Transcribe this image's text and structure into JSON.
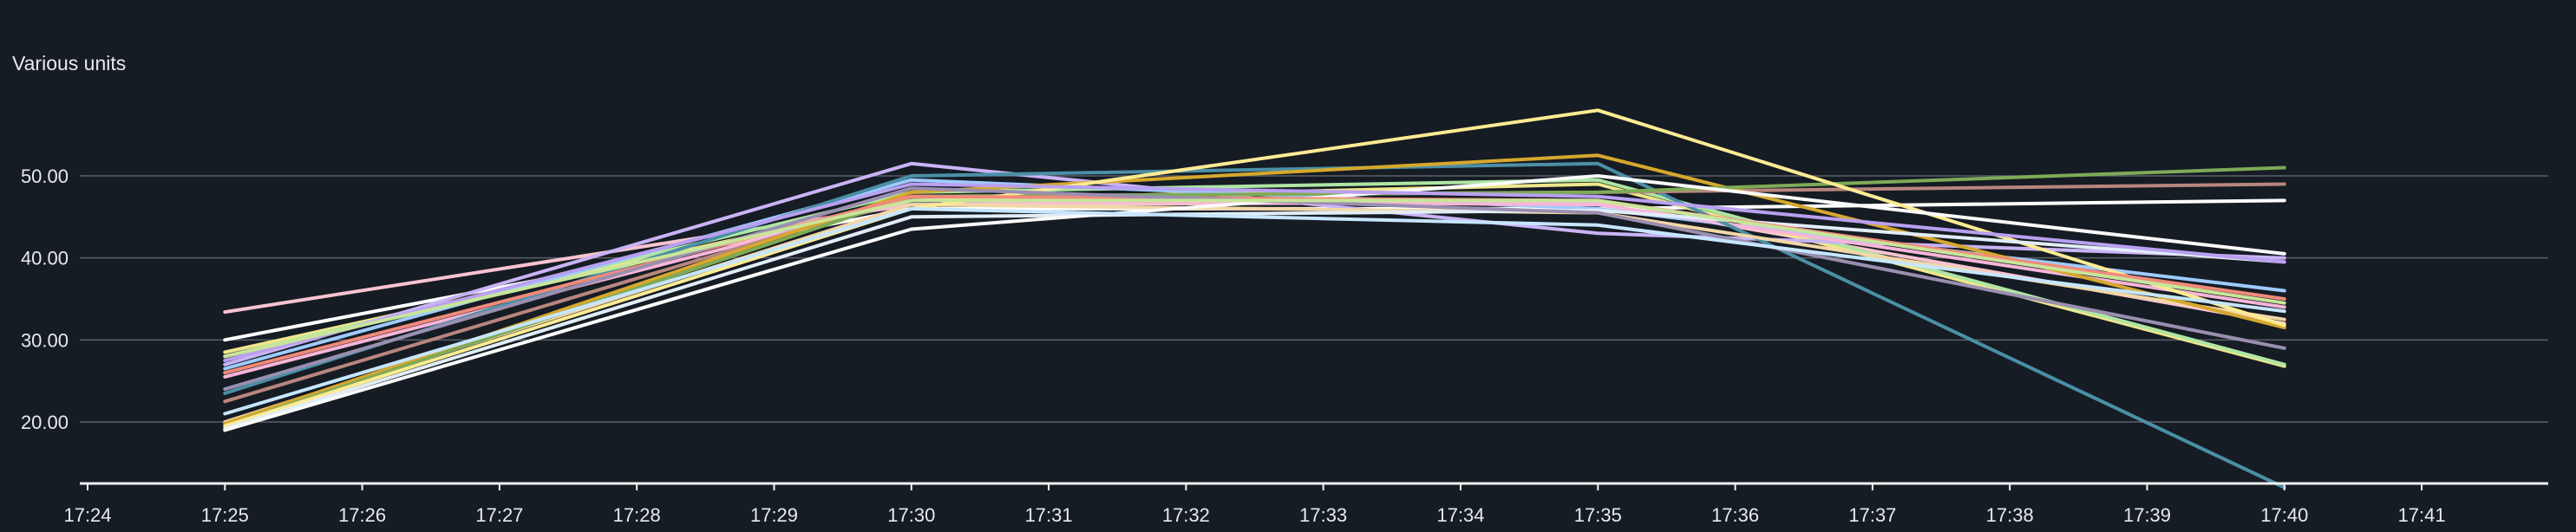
{
  "chart_data": {
    "type": "line",
    "ylabel": "Various units",
    "ylim": [
      12,
      62
    ],
    "yticks": [
      20,
      30,
      40,
      50
    ],
    "ytick_labels": [
      "20.00",
      "30.00",
      "40.00",
      "50.00"
    ],
    "xticks": [
      "17:24",
      "17:25",
      "17:26",
      "17:27",
      "17:28",
      "17:29",
      "17:30",
      "17:31",
      "17:32",
      "17:33",
      "17:34",
      "17:35",
      "17:36",
      "17:37",
      "17:38",
      "17:39",
      "17:40",
      "17:41"
    ],
    "x": [
      "17:25",
      "17:30",
      "17:35",
      "17:40"
    ],
    "grid": true,
    "legend": "none",
    "series": [
      {
        "color": "#f9c4cf",
        "values": [
          33.4,
          46.5,
          46.8,
          32.0
        ]
      },
      {
        "color": "#ffffff",
        "values": [
          30.0,
          46.0,
          46.0,
          47.0
        ]
      },
      {
        "color": "#f0e68c",
        "values": [
          28.5,
          47.0,
          49.0,
          26.8
        ]
      },
      {
        "color": "#aee6a3",
        "values": [
          28.0,
          48.0,
          49.5,
          27.0
        ]
      },
      {
        "color": "#c9b3f5",
        "values": [
          27.0,
          51.5,
          43.0,
          40.0
        ]
      },
      {
        "color": "#9ecbff",
        "values": [
          26.5,
          49.5,
          46.0,
          36.0
        ]
      },
      {
        "color": "#f7b5d8",
        "values": [
          25.5,
          47.0,
          46.5,
          34.0
        ]
      },
      {
        "color": "#4b8fa6",
        "values": [
          23.5,
          50.0,
          51.5,
          12.0
        ]
      },
      {
        "color": "#b8867d",
        "values": [
          22.5,
          47.5,
          48.0,
          49.0
        ]
      },
      {
        "color": "#f2d7a7",
        "values": [
          20.0,
          46.5,
          45.5,
          32.5
        ]
      },
      {
        "color": "#d6a82d",
        "values": [
          19.8,
          48.0,
          52.5,
          31.5
        ]
      },
      {
        "color": "#7faa57",
        "values": [
          19.5,
          47.5,
          48.0,
          51.0
        ]
      },
      {
        "color": "#fdeb93",
        "values": [
          19.5,
          46.0,
          58.0,
          31.8
        ]
      },
      {
        "color": "#e1edf7",
        "values": [
          19.2,
          45.0,
          45.8,
          39.5
        ]
      },
      {
        "color": "#fafafa",
        "values": [
          19.0,
          43.5,
          50.0,
          40.5
        ]
      },
      {
        "color": "#f08a7a",
        "values": [
          26.0,
          47.5,
          47.0,
          35.0
        ]
      },
      {
        "color": "#9a8fb0",
        "values": [
          24.0,
          48.5,
          45.5,
          29.0
        ]
      },
      {
        "color": "#c6e6ff",
        "values": [
          21.0,
          46.0,
          44.0,
          33.5
        ]
      },
      {
        "color": "#b9a0f0",
        "values": [
          27.5,
          49.0,
          47.5,
          39.5
        ]
      },
      {
        "color": "#c8e59a",
        "values": [
          28.0,
          47.0,
          47.0,
          34.5
        ]
      }
    ]
  }
}
